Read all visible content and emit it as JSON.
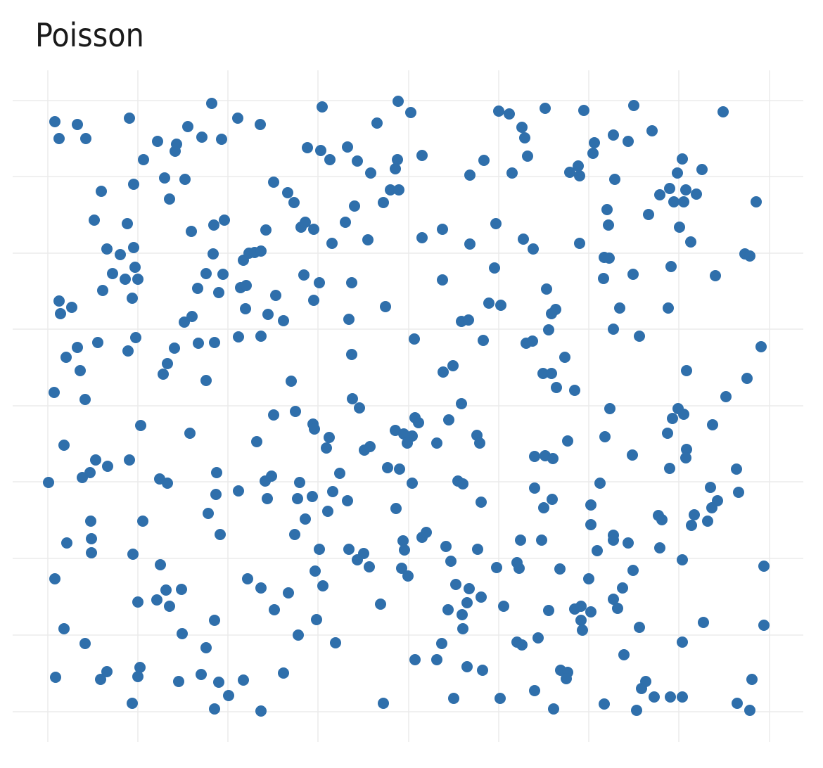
{
  "chart_data": {
    "type": "scatter",
    "title": "Poisson",
    "color": "#2f6fab",
    "grid": true,
    "xlim": [
      18,
      1142
    ],
    "ylim": [
      1050,
      100
    ],
    "xticks": [
      68,
      196,
      324,
      452,
      581,
      709,
      837,
      965,
      1094
    ],
    "yticks": [
      143,
      251,
      360,
      468,
      577,
      685,
      794,
      903,
      1012
    ],
    "x": [
      78,
      84,
      110,
      122,
      184,
      301,
      338,
      370,
      458,
      536,
      566,
      584,
      709,
      724,
      775,
      830,
      901,
      1028,
      742,
      746,
      267,
      287,
      315,
      224,
      251,
      249,
      204,
      437,
      456,
      469,
      494,
      508,
      527,
      565,
      562,
      600,
      668,
      688,
      728,
      750,
      845,
      843,
      872,
      893,
      927,
      970,
      998,
      963,
      822,
      810,
      824,
      874,
      144,
      190,
      234,
      263,
      241,
      389,
      409,
      418,
      504,
      545,
      555,
      567,
      952,
      938,
      975,
      990,
      958,
      972,
      1075,
      863,
      922,
      865,
      966,
      982,
      134,
      181,
      272,
      304,
      319,
      378,
      428,
      434,
      446,
      491,
      472,
      523,
      600,
      629,
      668,
      705,
      744,
      758,
      824,
      152,
      171,
      190,
      160,
      178,
      196,
      192,
      188,
      146,
      303,
      346,
      354,
      362,
      371,
      293,
      317,
      281,
      311,
      342,
      350,
      392,
      432,
      454,
      446,
      500,
      629,
      703,
      859,
      866,
      858,
      900,
      954,
      1017,
      1059,
      1066,
      84,
      86,
      102,
      349,
      381,
      403,
      262,
      273,
      496,
      548,
      656,
      666,
      695,
      712,
      777,
      790,
      784,
      780,
      881,
      950,
      193,
      182,
      139,
      110,
      94,
      114,
      77,
      121,
      248,
      238,
      232,
      282,
      305,
      339,
      371,
      293,
      500,
      414,
      589,
      630,
      644,
      687,
      748,
      757,
      803,
      772,
      784,
      791,
      817,
      872,
      909,
      976,
      1062,
      1082,
      1032,
      501,
      511,
      656,
      867,
      964,
      972,
      956,
      1013,
      949,
      200,
      91,
      270,
      365,
      389,
      420,
      445,
      447,
      468,
      464,
      518,
      526,
      562,
      574,
      586,
      579,
      590,
      595,
      621,
      638,
      678,
      682,
      807,
      860,
      899,
      976,
      975,
      1047,
      136,
      153,
      184,
      128,
      117,
      69,
      227,
      238,
      308,
      307,
      339,
      377,
      386,
      380,
      426,
      423,
      444,
      473,
      466,
      483,
      494,
      551,
      568,
      586,
      563,
      651,
      658,
      684,
      760,
      775,
      786,
      760,
      785,
      773,
      853,
      840,
      952,
      1010,
      1050,
      1020,
      1012,
      987,
      983,
      1006,
      936,
      941,
      129,
      130,
      130,
      95,
      203,
      296,
      313,
      419,
      434,
      189,
      228,
      454,
      496,
      508,
      517,
      525,
      573,
      575,
      571,
      580,
      600,
      606,
      634,
      641,
      679,
      740,
      770,
      735,
      738,
      706,
      796,
      840,
      872,
      872,
      893,
      849,
      938,
      900,
      970,
      1086,
      78,
      236,
      258,
      223,
      241,
      196,
      352,
      371,
      410,
      390,
      448,
      459,
      541,
      648,
      667,
      664,
      684,
      637,
      657,
      658,
      716,
      780,
      817,
      826,
      840,
      826,
      828,
      837,
      885,
      872,
      878,
      91,
      121,
      259,
      305,
      293,
      424,
      450,
      477,
      628,
      735,
      742,
      765,
      909,
      887,
      1000,
      970,
      1086,
      79,
      143,
      152,
      199,
      196,
      188,
      254,
      286,
      311,
      305,
      325,
      346,
      371,
      403,
      545,
      590,
      621,
      664,
      686,
      645,
      711,
      760,
      787,
      797,
      807,
      805,
      859,
      905,
      912,
      918,
      930,
      953,
      970,
      1048,
      1066,
      1069
    ],
    "y": [
      173,
      197,
      177,
      197,
      168,
      147,
      168,
      177,
      152,
      175,
      144,
      160,
      158,
      162,
      154,
      157,
      150,
      159,
      181,
      196,
      180,
      195,
      198,
      201,
      205,
      215,
      227,
      210,
      214,
      227,
      209,
      229,
      246,
      227,
      240,
      221,
      249,
      228,
      246,
      222,
      203,
      218,
      192,
      201,
      186,
      226,
      241,
      246,
      236,
      245,
      250,
      255,
      272,
      262,
      253,
      255,
      283,
      259,
      274,
      288,
      293,
      288,
      270,
      270,
      268,
      277,
      270,
      276,
      287,
      287,
      287,
      298,
      305,
      320,
      323,
      344,
      313,
      318,
      329,
      320,
      313,
      327,
      323,
      316,
      326,
      316,
      346,
      341,
      338,
      326,
      347,
      318,
      340,
      354,
      346,
      354,
      362,
      352,
      389,
      397,
      397,
      380,
      424,
      413,
      361,
      370,
      360,
      359,
      357,
      389,
      390,
      410,
      416,
      409,
      406,
      420,
      391,
      402,
      427,
      402,
      398,
      381,
      366,
      367,
      396,
      390,
      379,
      392,
      361,
      364,
      428,
      446,
      437,
      439,
      447,
      456,
      458,
      450,
      454,
      436,
      457,
      455,
      431,
      434,
      411,
      440,
      446,
      469,
      438,
      438,
      480,
      499,
      487,
      494,
      508,
      527,
      558,
      568,
      495,
      517,
      532,
      488,
      487,
      479,
      478,
      541,
      504,
      542,
      482,
      529,
      520,
      484,
      488,
      485,
      508,
      531,
      531,
      551,
      555,
      468,
      478,
      527,
      538,
      493,
      564,
      567,
      580,
      574,
      581,
      581,
      589,
      595,
      604,
      616,
      605,
      633,
      616,
      628,
      590,
      585,
      603,
      610,
      622,
      637,
      640,
      635,
      612,
      617,
      620,
      630,
      594,
      601,
      630,
      597,
      619,
      630,
      627,
      621,
      647,
      639,
      651,
      667,
      654,
      663,
      654,
      672,
      679,
      686,
      681,
      687,
      672,
      703,
      698,
      684,
      677,
      709,
      686,
      709,
      706,
      699,
      727,
      673,
      712,
      665,
      667,
      687,
      723,
      684,
      688,
      714,
      649,
      648,
      652,
      694,
      710,
      722,
      687,
      718,
      666,
      693,
      700,
      712,
      722,
      732,
      747,
      741,
      733,
      739,
      741,
      766,
      786,
      772,
      741,
      730,
      760,
      760,
      738,
      788,
      803,
      781,
      781,
      796,
      787,
      806,
      769,
      782,
      808,
      819,
      764,
      757,
      777,
      798,
      781,
      768,
      768,
      800,
      808,
      807,
      809,
      746,
      761,
      768,
      772,
      783,
      779,
      811,
      796,
      805,
      823,
      839,
      838,
      853,
      862,
      856,
      823,
      836,
      843,
      867,
      812,
      833,
      859,
      831,
      837,
      857,
      849,
      867,
      874,
      894,
      862,
      868,
      866,
      862,
      870,
      882,
      896,
      823,
      836,
      852,
      865,
      894,
      915,
      901,
      882,
      921,
      903,
      881,
      914,
      915,
      913,
      917,
      907,
      892,
      931,
      885,
      913,
      889,
      963,
      966,
      955,
      949,
      962,
      1000,
      969,
      959,
      970,
      1008,
      989,
      967,
      1011,
      957,
      1000,
      938,
      938,
      948,
      953,
      993,
      993,
      982,
      1008,
      953,
      956,
      965,
      1001,
      1010,
      979,
      969,
      991,
      991,
      991,
      1000,
      1010,
      966
    ]
  }
}
